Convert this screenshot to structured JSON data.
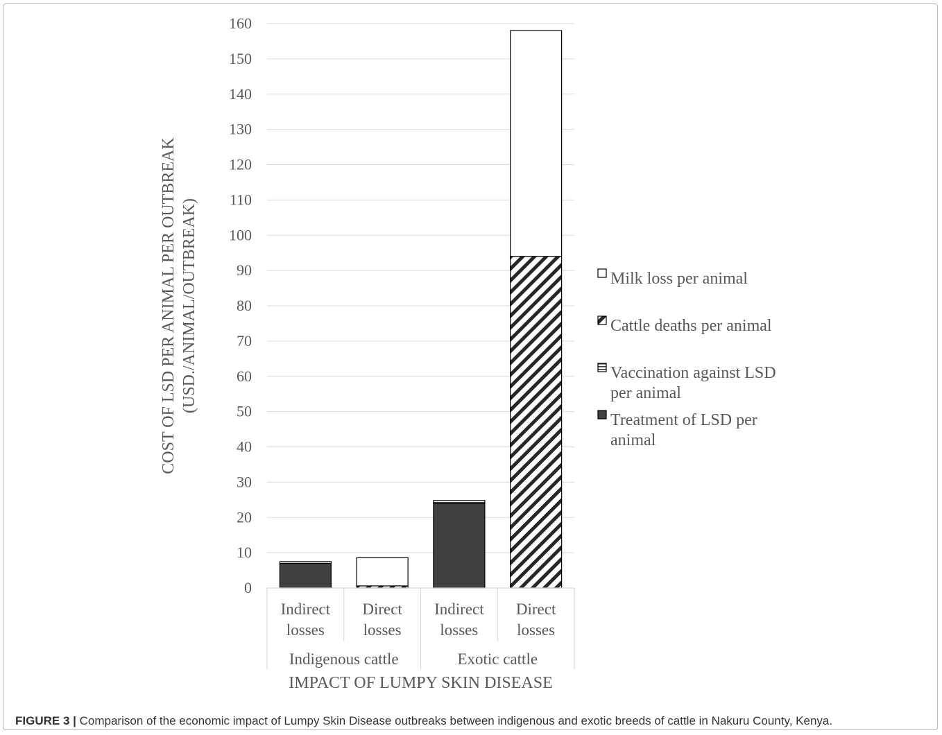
{
  "caption": {
    "label": "FIGURE 3 |",
    "text": "Comparison of the economic impact of Lumpy Skin Disease outbreaks between indigenous and exotic breeds of cattle in Nakuru County, Kenya."
  },
  "chart_data": {
    "type": "bar",
    "stacked": true,
    "title": "",
    "xlabel": "IMPACT OF LUMPY SKIN DISEASE",
    "ylabel": [
      "COST OF LSD PER ANIMAL PER OUTBREAK",
      "(USD./ANIMAL/OUTBREAK)"
    ],
    "ylim": [
      0,
      160
    ],
    "yticks": [
      0,
      10,
      20,
      30,
      40,
      50,
      60,
      70,
      80,
      90,
      100,
      110,
      120,
      130,
      140,
      150,
      160
    ],
    "grid": true,
    "legend_position": "right",
    "categories": [
      [
        "Indirect",
        "losses"
      ],
      [
        "Direct",
        "losses"
      ],
      [
        "Indirect",
        "losses"
      ],
      [
        "Direct",
        "losses"
      ]
    ],
    "groups": [
      {
        "label": "Indigenous cattle",
        "span": [
          0,
          1
        ]
      },
      {
        "label": "Exotic cattle",
        "span": [
          2,
          3
        ]
      }
    ],
    "series": [
      {
        "name": "Treatment of LSD per animal",
        "pattern": "solid",
        "color": "#404040",
        "values": [
          7,
          0,
          24,
          0
        ]
      },
      {
        "name": "Vaccination against LSD per animal",
        "pattern": "horizontal-lines",
        "color": "#404040",
        "values": [
          0.5,
          0,
          0.8,
          0
        ]
      },
      {
        "name": "Cattle deaths per animal",
        "pattern": "diagonal-hatch",
        "color": "#262626",
        "values": [
          0,
          0.6,
          0,
          94
        ]
      },
      {
        "name": "Milk loss per animal",
        "pattern": "white",
        "color": "#ffffff",
        "values": [
          0,
          8,
          0,
          64
        ]
      }
    ],
    "legend": [
      {
        "lines": [
          "Milk loss per animal"
        ],
        "pattern": "white"
      },
      {
        "lines": [
          "Cattle deaths per animal"
        ],
        "pattern": "diagonal-hatch"
      },
      {
        "lines": [
          "Vaccination against LSD",
          "per animal"
        ],
        "pattern": "horizontal-lines"
      },
      {
        "lines": [
          "Treatment of LSD per",
          "animal"
        ],
        "pattern": "solid"
      }
    ]
  }
}
